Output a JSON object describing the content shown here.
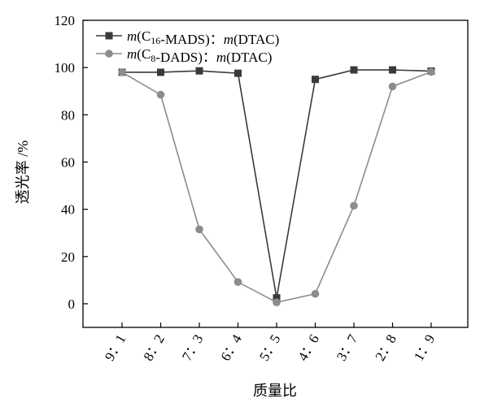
{
  "chart_data": {
    "type": "line",
    "xlabel": "质量比",
    "ylabel": "透光率 /%",
    "categories": [
      "9：1",
      "8：2",
      "7：3",
      "6：4",
      "5：5",
      "4：6",
      "3：7",
      "2：8",
      "1：9"
    ],
    "ylim": [
      -10,
      120
    ],
    "yticks": [
      0,
      20,
      40,
      60,
      80,
      100,
      120
    ],
    "grid": false,
    "legend_position": "top-left",
    "series": [
      {
        "name": "m(C16-MADS)：m(DTAC)",
        "legend_parts": [
          {
            "text": "m",
            "italic": true
          },
          {
            "text": "(C"
          },
          {
            "text": "16",
            "sub": true
          },
          {
            "text": "-MADS)："
          },
          {
            "text": "m",
            "italic": true
          },
          {
            "text": "(DTAC)"
          }
        ],
        "marker": "square",
        "color": "#3a3a3a",
        "values": [
          98,
          98,
          98.6,
          97.6,
          2.5,
          95,
          99,
          99,
          98.5
        ]
      },
      {
        "name": "m(C8-DADS)：m(DTAC)",
        "legend_parts": [
          {
            "text": "m",
            "italic": true
          },
          {
            "text": "(C"
          },
          {
            "text": "8",
            "sub": true
          },
          {
            "text": "-DADS)："
          },
          {
            "text": "m",
            "italic": true
          },
          {
            "text": "(DTAC)"
          }
        ],
        "marker": "circle",
        "color": "#8c8c8c",
        "values": [
          98,
          88.5,
          31.5,
          9.2,
          0.6,
          4.2,
          41.5,
          92,
          98.2
        ]
      }
    ]
  }
}
